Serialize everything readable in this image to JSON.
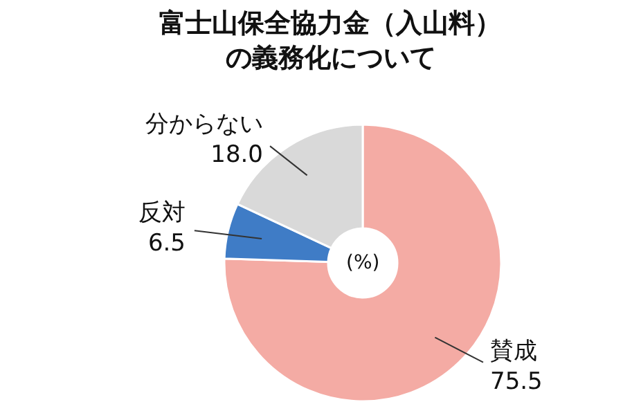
{
  "chart_data": {
    "type": "donut",
    "title": "富士山保全協力金（入山料）",
    "subtitle": "の義務化について",
    "categories": [
      "賛成",
      "反対",
      "分からない"
    ],
    "values": [
      75.5,
      6.5,
      18.0
    ],
    "value_labels": [
      "75.5",
      "6.5",
      "18.0"
    ],
    "colors": [
      "#f4aba4",
      "#3f7cc6",
      "#d9d9d9"
    ],
    "annotations": [
      "(%)"
    ],
    "legend": false
  }
}
